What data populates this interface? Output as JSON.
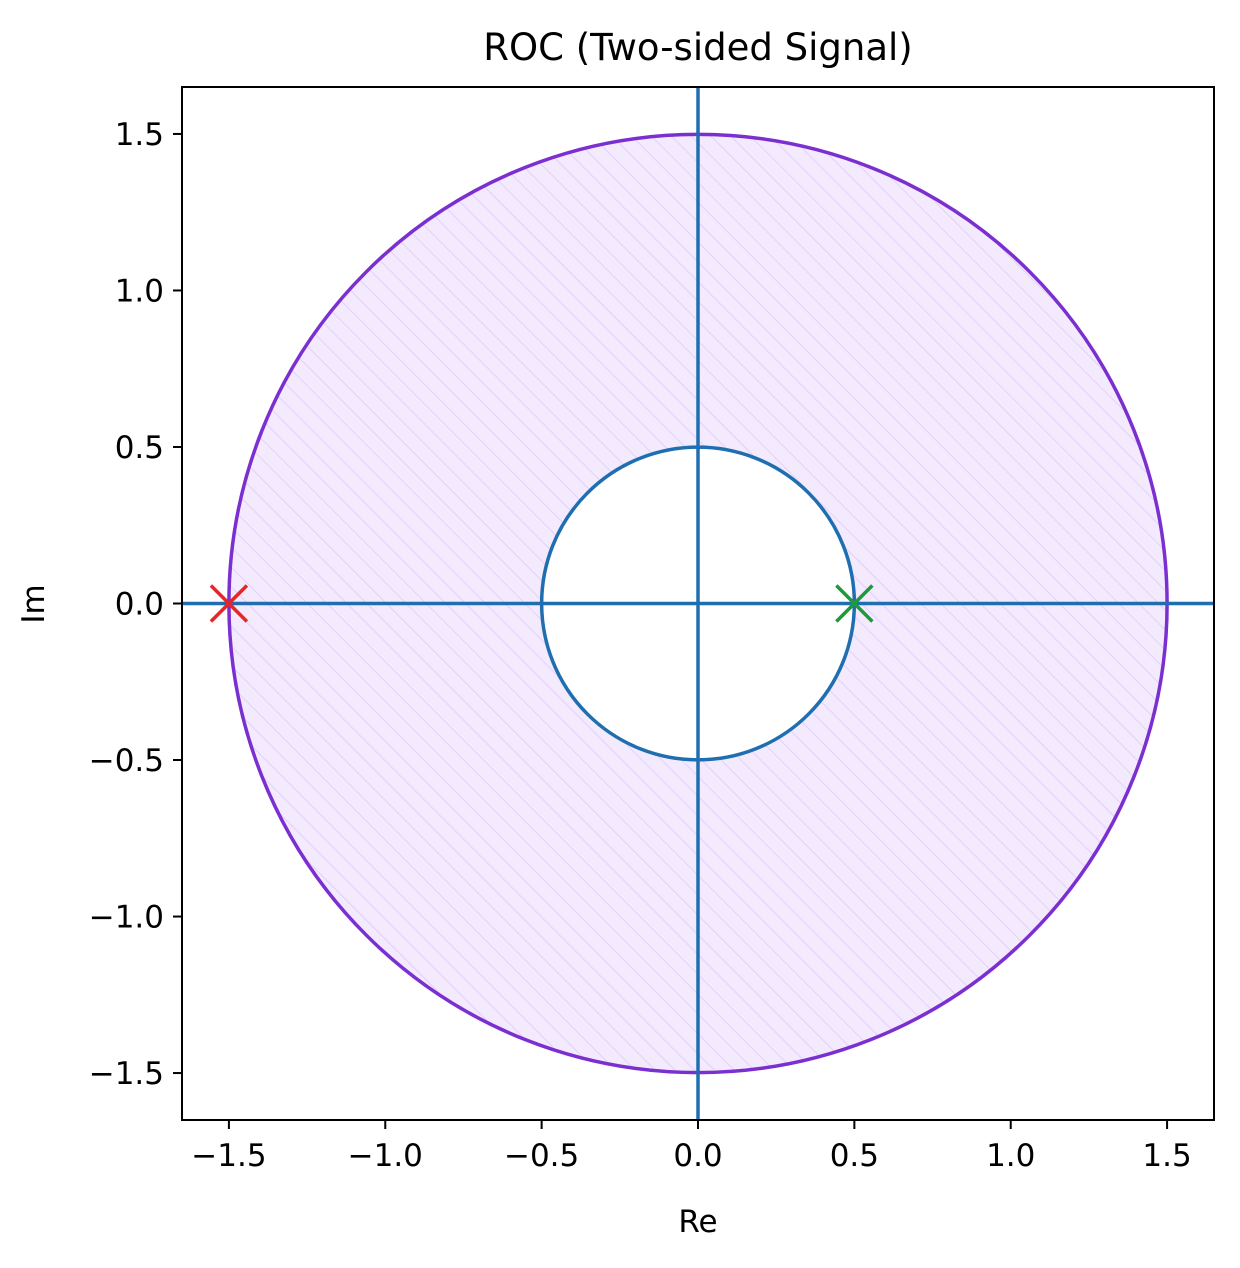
{
  "chart_data": {
    "type": "scatter",
    "title": "ROC (Two-sided Signal)",
    "xlabel": "Re",
    "ylabel": "Im",
    "xlim": [
      -1.65,
      1.65
    ],
    "ylim": [
      -1.65,
      1.65
    ],
    "xticks": [
      -1.5,
      -1.0,
      -0.5,
      0.0,
      0.5,
      1.0,
      1.5
    ],
    "yticks": [
      -1.5,
      -1.0,
      -0.5,
      0.0,
      0.5,
      1.0,
      1.5
    ],
    "xtick_labels": [
      "−1.5",
      "−1.0",
      "−0.5",
      "0.0",
      "0.5",
      "1.0",
      "1.5"
    ],
    "ytick_labels": [
      "−1.5",
      "−1.0",
      "−0.5",
      "0.0",
      "0.5",
      "1.0",
      "1.5"
    ],
    "grid": false,
    "roc_annulus": {
      "inner_radius": 0.5,
      "outer_radius": 1.5,
      "fill_color": "#f3eafd",
      "hatch_color": "#e3d0fa",
      "outer_boundary_color": "#7b2fd1",
      "inner_boundary_color": "#1f6fb0"
    },
    "axis_lines_color": "#1f6fb0",
    "markers": [
      {
        "x": 0.5,
        "y": 0.0,
        "symbol": "x",
        "color": "#1f9a3a"
      },
      {
        "x": -1.5,
        "y": 0.0,
        "symbol": "x",
        "color": "#e8262a"
      }
    ]
  }
}
